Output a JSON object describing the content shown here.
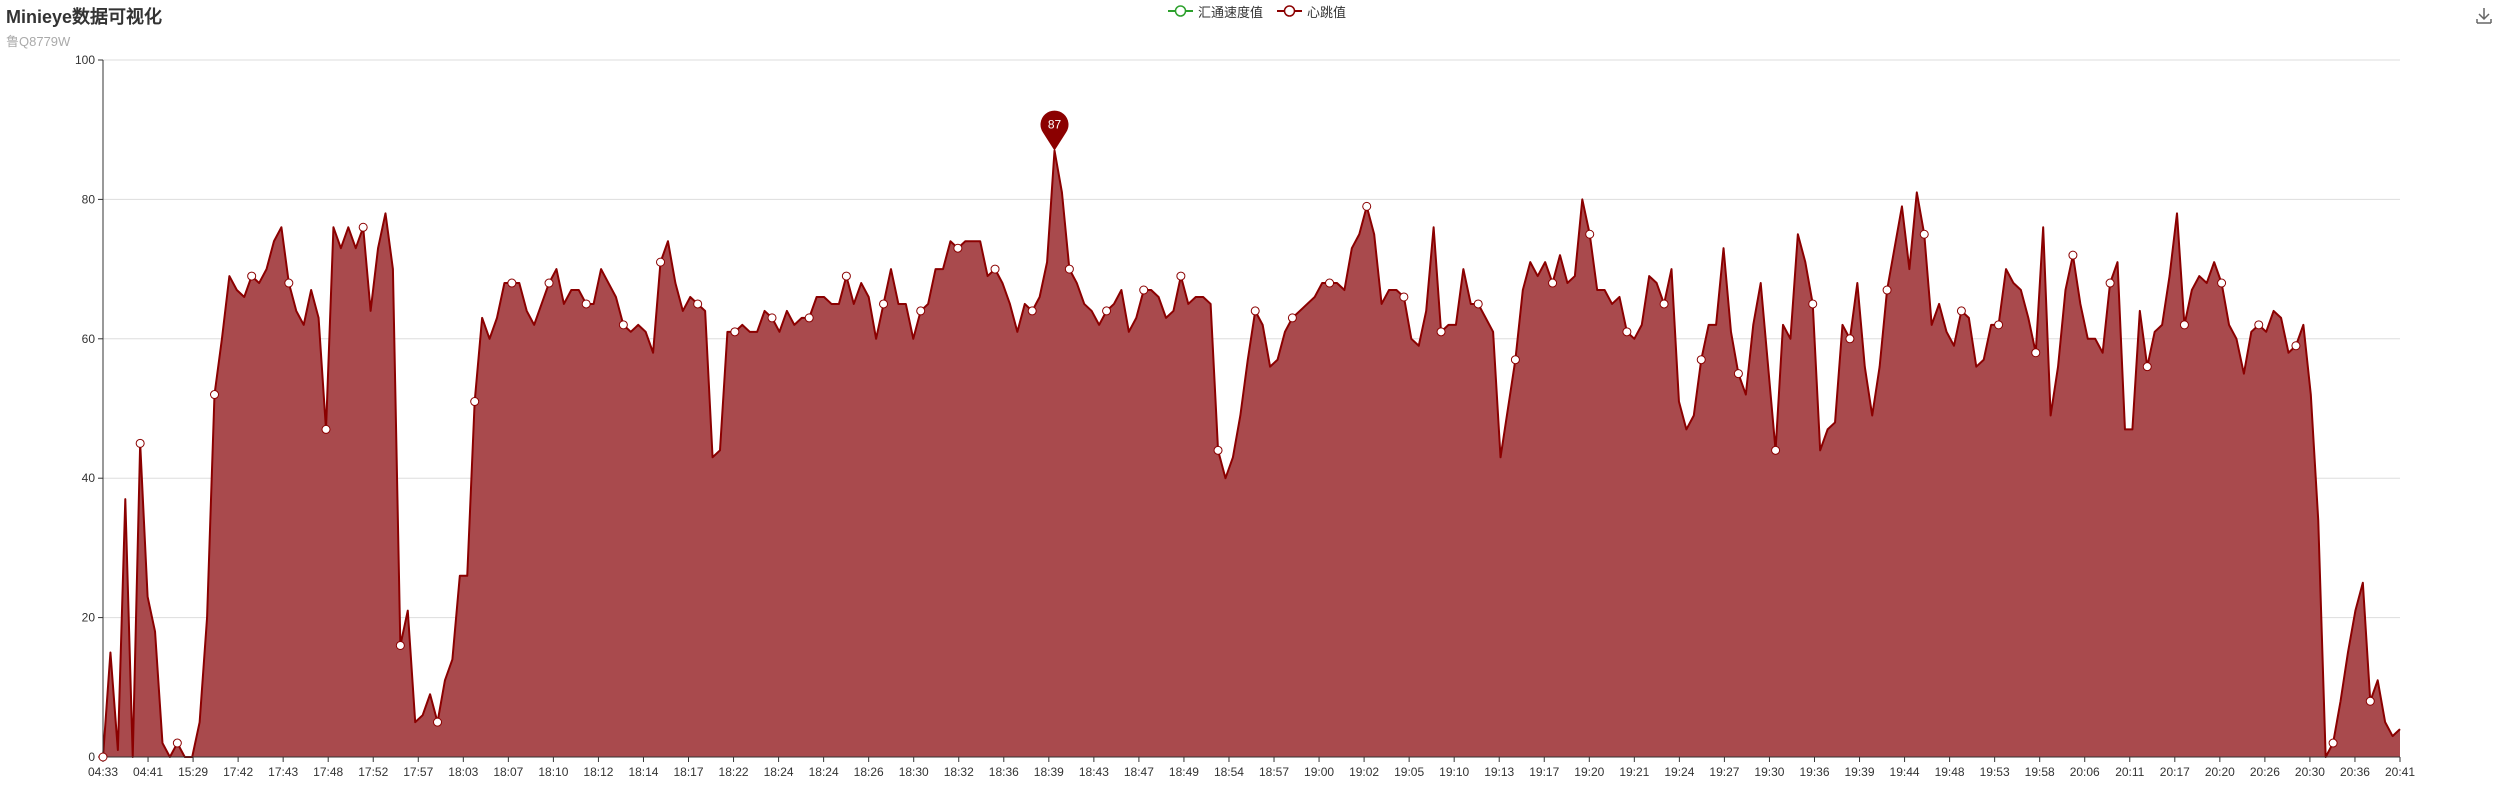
{
  "colors": {
    "flow_series": "#2ca02c",
    "heart_series": "#8b0000",
    "area_fill": "#a94a4d",
    "grid": "#dddddd"
  },
  "chart_data": {
    "type": "area",
    "title": "Minieye数据可视化",
    "subtitle": "鲁Q8779W",
    "legend": {
      "position": "top-center",
      "items": [
        "汇通速度值",
        "心跳值"
      ]
    },
    "ylim": [
      0,
      100
    ],
    "y_ticks": [
      "0",
      "20",
      "40",
      "60",
      "80",
      "100"
    ],
    "x_ticks": [
      "04:33",
      "04:41",
      "15:29",
      "17:42",
      "17:43",
      "17:48",
      "17:52",
      "17:57",
      "18:03",
      "18:07",
      "18:10",
      "18:12",
      "18:14",
      "18:17",
      "18:22",
      "18:24",
      "18:24",
      "18:26",
      "18:30",
      "18:32",
      "18:36",
      "18:39",
      "18:43",
      "18:47",
      "18:49",
      "18:54",
      "18:57",
      "19:00",
      "19:02",
      "19:05",
      "19:10",
      "19:13",
      "19:17",
      "19:20",
      "19:21",
      "19:24",
      "19:27",
      "19:30",
      "19:36",
      "19:39",
      "19:44",
      "19:48",
      "19:53",
      "19:58",
      "20:06",
      "20:11",
      "20:17",
      "20:20",
      "20:26",
      "20:30",
      "20:36",
      "20:41"
    ],
    "grid": true,
    "markpoint": {
      "label": "87",
      "value": 87
    },
    "series": [
      {
        "name": "汇通速度值",
        "values": []
      },
      {
        "name": "心跳值",
        "values": [
          0,
          15,
          1,
          37,
          0,
          45,
          23,
          18,
          2,
          0,
          2,
          0,
          0,
          5,
          20,
          52,
          60,
          69,
          67,
          66,
          69,
          68,
          70,
          74,
          76,
          68,
          64,
          62,
          67,
          63,
          47,
          76,
          73,
          76,
          73,
          76,
          64,
          73,
          78,
          70,
          16,
          21,
          5,
          6,
          9,
          5,
          11,
          14,
          26,
          26,
          51,
          63,
          60,
          63,
          68,
          68,
          68,
          64,
          62,
          65,
          68,
          70,
          65,
          67,
          67,
          65,
          65,
          70,
          68,
          66,
          62,
          61,
          62,
          61,
          58,
          71,
          74,
          68,
          64,
          66,
          65,
          64,
          43,
          44,
          61,
          61,
          62,
          61,
          61,
          64,
          63,
          61,
          64,
          62,
          63,
          63,
          66,
          66,
          65,
          65,
          69,
          65,
          68,
          66,
          60,
          65,
          70,
          65,
          65,
          60,
          64,
          65,
          70,
          70,
          74,
          73,
          74,
          74,
          74,
          69,
          70,
          68,
          65,
          61,
          65,
          64,
          66,
          71,
          87,
          81,
          70,
          68,
          65,
          64,
          62,
          64,
          65,
          67,
          61,
          63,
          67,
          67,
          66,
          63,
          64,
          69,
          65,
          66,
          66,
          65,
          44,
          40,
          43,
          49,
          57,
          64,
          62,
          56,
          57,
          61,
          63,
          64,
          65,
          66,
          68,
          68,
          68,
          67,
          73,
          75,
          79,
          75,
          65,
          67,
          67,
          66,
          60,
          59,
          64,
          76,
          61,
          62,
          62,
          70,
          65,
          65,
          63,
          61,
          43,
          50,
          57,
          67,
          71,
          69,
          71,
          68,
          72,
          68,
          69,
          80,
          75,
          67,
          67,
          65,
          66,
          61,
          60,
          62,
          69,
          68,
          65,
          70,
          51,
          47,
          49,
          57,
          62,
          62,
          73,
          61,
          55,
          52,
          62,
          68,
          56,
          44,
          62,
          60,
          75,
          71,
          65,
          44,
          47,
          48,
          62,
          60,
          68,
          56,
          49,
          56,
          67,
          73,
          79,
          70,
          81,
          75,
          62,
          65,
          61,
          59,
          64,
          63,
          56,
          57,
          62,
          62,
          70,
          68,
          67,
          63,
          58,
          76,
          49,
          56,
          67,
          72,
          65,
          60,
          60,
          58,
          68,
          71,
          47,
          47,
          64,
          56,
          61,
          62,
          69,
          78,
          62,
          67,
          69,
          68,
          71,
          68,
          62,
          60,
          55,
          61,
          62,
          61,
          64,
          63,
          58,
          59,
          62,
          52,
          34,
          0,
          2,
          8,
          15,
          21,
          25,
          8,
          11,
          5,
          3,
          4
        ]
      }
    ]
  }
}
